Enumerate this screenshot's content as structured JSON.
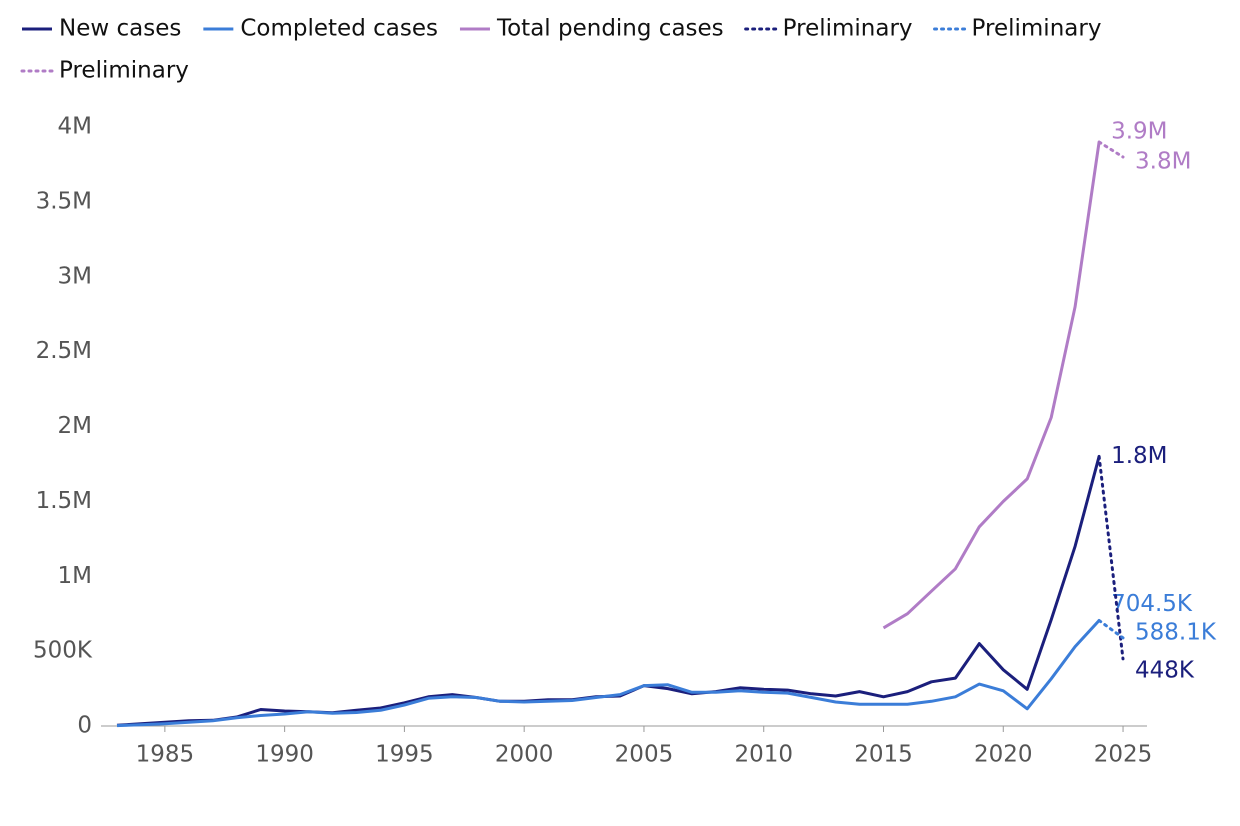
{
  "chart_data": {
    "type": "line",
    "x": [
      1983,
      1984,
      1985,
      1986,
      1987,
      1988,
      1989,
      1990,
      1991,
      1992,
      1993,
      1994,
      1995,
      1996,
      1997,
      1998,
      1999,
      2000,
      2001,
      2002,
      2003,
      2004,
      2005,
      2006,
      2007,
      2008,
      2009,
      2010,
      2011,
      2012,
      2013,
      2014,
      2015,
      2016,
      2017,
      2018,
      2019,
      2020,
      2021,
      2022,
      2023,
      2024
    ],
    "series": [
      {
        "name": "New cases",
        "color": "#1b1f7c",
        "dash": "solid",
        "values": [
          5000,
          15000,
          25000,
          35000,
          38000,
          60000,
          110000,
          100000,
          95000,
          88000,
          105000,
          120000,
          155000,
          195000,
          210000,
          190000,
          165000,
          165000,
          175000,
          175000,
          195000,
          200000,
          270000,
          250000,
          215000,
          230000,
          255000,
          245000,
          240000,
          215000,
          200000,
          230000,
          195000,
          230000,
          295000,
          320000,
          550000,
          375000,
          245000,
          710000,
          1200000,
          1800000
        ],
        "value_labels": [
          null,
          null,
          null,
          null,
          null,
          null,
          null,
          null,
          null,
          null,
          null,
          null,
          null,
          null,
          null,
          null,
          null,
          null,
          null,
          null,
          null,
          null,
          null,
          null,
          null,
          null,
          null,
          null,
          null,
          null,
          null,
          null,
          null,
          null,
          null,
          null,
          null,
          null,
          null,
          null,
          null,
          "1.8M"
        ]
      },
      {
        "name": "Completed cases",
        "color": "#3b7dd8",
        "dash": "solid",
        "values": [
          3000,
          8000,
          15000,
          25000,
          35000,
          55000,
          70000,
          80000,
          95000,
          85000,
          90000,
          105000,
          140000,
          185000,
          195000,
          190000,
          165000,
          160000,
          165000,
          170000,
          190000,
          210000,
          270000,
          275000,
          225000,
          225000,
          235000,
          225000,
          220000,
          190000,
          160000,
          145000,
          145000,
          145000,
          165000,
          195000,
          280000,
          235000,
          115000,
          315000,
          530000,
          704500
        ],
        "value_labels": [
          null,
          null,
          null,
          null,
          null,
          null,
          null,
          null,
          null,
          null,
          null,
          null,
          null,
          null,
          null,
          null,
          null,
          null,
          null,
          null,
          null,
          null,
          null,
          null,
          null,
          null,
          null,
          null,
          null,
          null,
          null,
          null,
          null,
          null,
          null,
          null,
          null,
          null,
          null,
          null,
          null,
          "704.5K"
        ]
      },
      {
        "name": "Total pending cases",
        "color": "#b07cc6",
        "dash": "solid",
        "values": [
          null,
          null,
          null,
          null,
          null,
          null,
          null,
          null,
          null,
          null,
          null,
          null,
          null,
          null,
          null,
          null,
          null,
          null,
          null,
          null,
          null,
          null,
          null,
          null,
          null,
          null,
          null,
          null,
          null,
          null,
          null,
          null,
          655000,
          750000,
          900000,
          1050000,
          1330000,
          1500000,
          1650000,
          2060000,
          2800000,
          3900000
        ],
        "value_labels": [
          null,
          null,
          null,
          null,
          null,
          null,
          null,
          null,
          null,
          null,
          null,
          null,
          null,
          null,
          null,
          null,
          null,
          null,
          null,
          null,
          null,
          null,
          null,
          null,
          null,
          null,
          null,
          null,
          null,
          null,
          null,
          null,
          null,
          null,
          null,
          null,
          null,
          null,
          null,
          null,
          null,
          "3.9M"
        ]
      },
      {
        "name": "Preliminary",
        "color": "#1b1f7c",
        "dash": "dotted",
        "x": [
          2024,
          2025
        ],
        "values": [
          1800000,
          448000
        ],
        "value_labels": [
          null,
          "448K"
        ]
      },
      {
        "name": "Preliminary",
        "color": "#3b7dd8",
        "dash": "dotted",
        "x": [
          2024,
          2025
        ],
        "values": [
          704500,
          588100
        ],
        "value_labels": [
          null,
          "588.1K"
        ]
      },
      {
        "name": "Preliminary",
        "color": "#b07cc6",
        "dash": "dotted",
        "x": [
          2024,
          2025
        ],
        "values": [
          3900000,
          3800000
        ],
        "value_labels": [
          null,
          "3.8M"
        ]
      }
    ],
    "xlim": [
      1982,
      2026
    ],
    "xticks": [
      1985,
      1990,
      1995,
      2000,
      2005,
      2010,
      2015,
      2020,
      2025
    ],
    "ylim": [
      0,
      4000000
    ],
    "yticks": [
      0,
      {
        "value": 500000,
        "label": "500K"
      },
      {
        "value": 1000000,
        "label": "1M"
      },
      {
        "value": 1500000,
        "label": "1.5M"
      },
      {
        "value": 2000000,
        "label": "2M"
      },
      {
        "value": 2500000,
        "label": "2.5M"
      },
      {
        "value": 3000000,
        "label": "3M"
      },
      {
        "value": 3500000,
        "label": "3.5M"
      },
      {
        "value": 4000000,
        "label": "4M"
      }
    ],
    "legend": "top-left",
    "grid": false
  }
}
